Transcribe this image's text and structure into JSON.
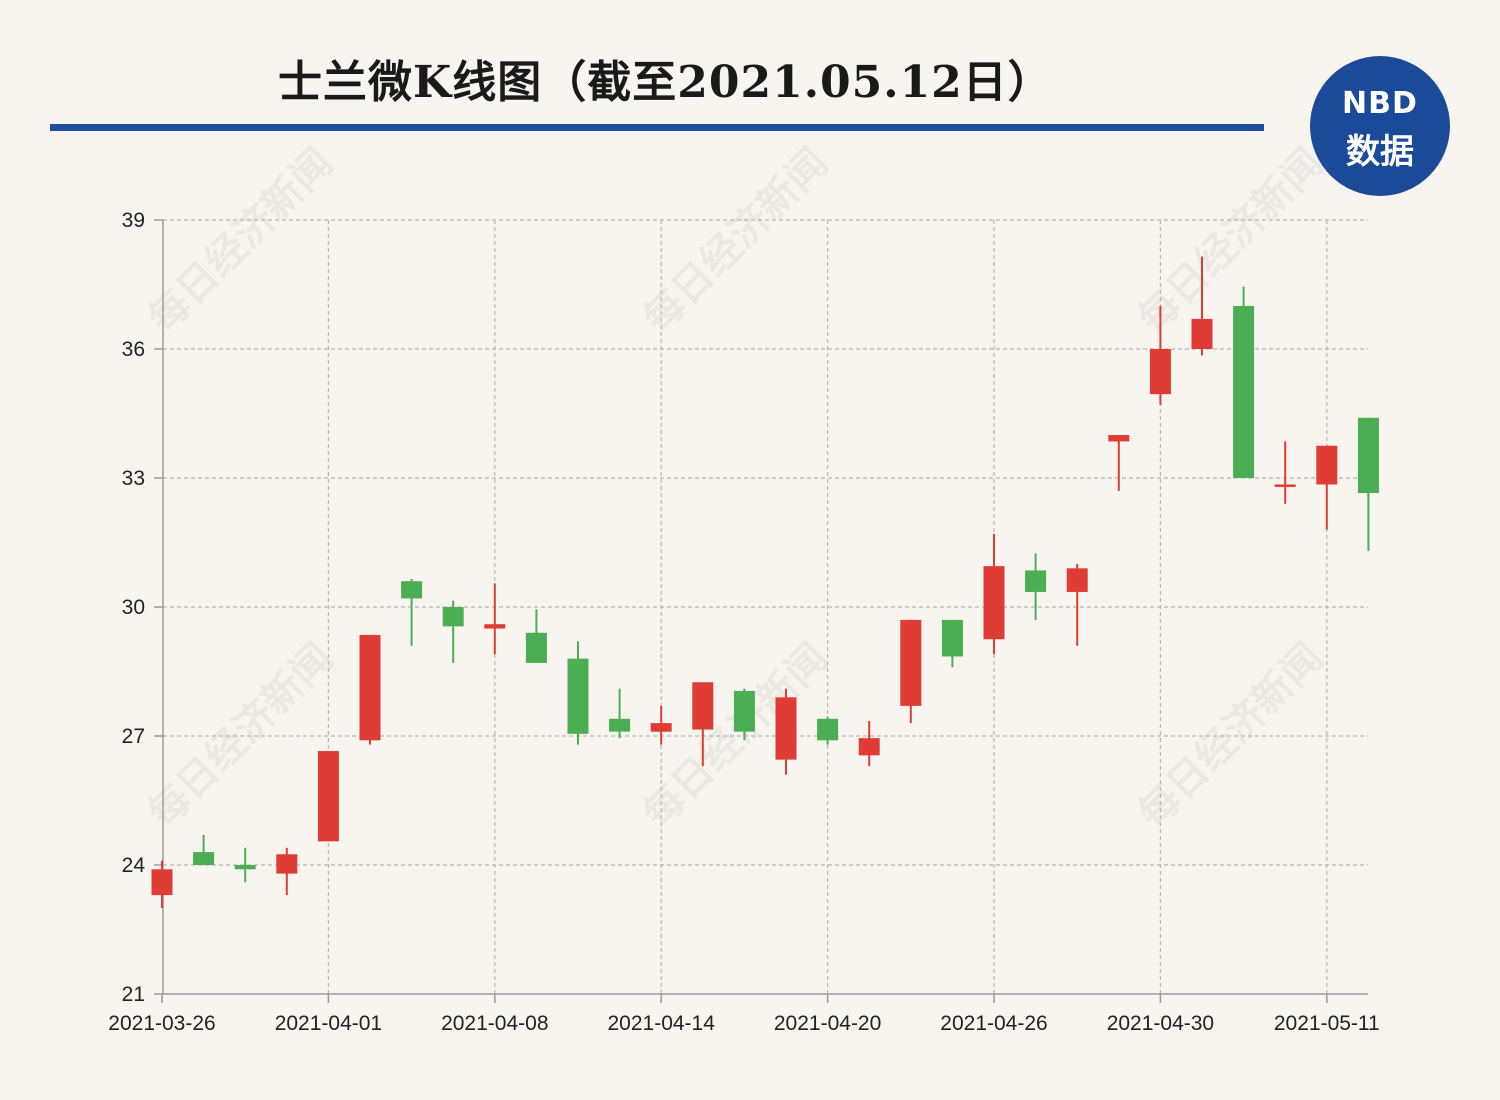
{
  "header": {
    "title": "士兰微K线图（截至2021.05.12日）",
    "logo_line1": "NBD",
    "logo_line2": "数据",
    "watermark": "每日经济新闻"
  },
  "colors": {
    "up": "#e03c36",
    "down": "#4cae52",
    "rule": "#1e4f9c",
    "logo_bg": "#1a4a98"
  },
  "chart_data": {
    "type": "candlestick",
    "ylim": [
      21,
      39
    ],
    "yticks": [
      21,
      24,
      27,
      30,
      33,
      36,
      39
    ],
    "xticks": [
      {
        "index": 0,
        "label": "2021-03-26"
      },
      {
        "index": 4,
        "label": "2021-04-01"
      },
      {
        "index": 8,
        "label": "2021-04-08"
      },
      {
        "index": 12,
        "label": "2021-04-14"
      },
      {
        "index": 16,
        "label": "2021-04-20"
      },
      {
        "index": 20,
        "label": "2021-04-26"
      },
      {
        "index": 24,
        "label": "2021-04-30"
      },
      {
        "index": 28,
        "label": "2021-05-11"
      }
    ],
    "grid": true,
    "candles": [
      {
        "open": 23.3,
        "close": 23.9,
        "high": 24.1,
        "low": 23.0
      },
      {
        "open": 24.3,
        "close": 24.0,
        "high": 24.7,
        "low": 24.0
      },
      {
        "open": 24.0,
        "close": 23.9,
        "high": 24.4,
        "low": 23.6
      },
      {
        "open": 23.8,
        "close": 24.25,
        "high": 24.4,
        "low": 23.3
      },
      {
        "open": 24.55,
        "close": 26.65,
        "high": 26.65,
        "low": 24.55
      },
      {
        "open": 26.9,
        "close": 29.35,
        "high": 29.35,
        "low": 26.8
      },
      {
        "open": 30.6,
        "close": 30.2,
        "high": 30.65,
        "low": 29.1
      },
      {
        "open": 30.0,
        "close": 29.55,
        "high": 30.15,
        "low": 28.7
      },
      {
        "open": 29.5,
        "close": 29.6,
        "high": 30.55,
        "low": 28.9
      },
      {
        "open": 29.4,
        "close": 28.7,
        "high": 29.95,
        "low": 28.7
      },
      {
        "open": 28.8,
        "close": 27.05,
        "high": 29.2,
        "low": 26.8
      },
      {
        "open": 27.4,
        "close": 27.1,
        "high": 28.1,
        "low": 26.95
      },
      {
        "open": 27.1,
        "close": 27.3,
        "high": 27.7,
        "low": 26.8
      },
      {
        "open": 27.15,
        "close": 28.25,
        "high": 28.25,
        "low": 26.3
      },
      {
        "open": 28.05,
        "close": 27.1,
        "high": 28.1,
        "low": 26.9
      },
      {
        "open": 26.45,
        "close": 27.9,
        "high": 28.1,
        "low": 26.1
      },
      {
        "open": 27.4,
        "close": 26.9,
        "high": 27.45,
        "low": 26.8
      },
      {
        "open": 26.55,
        "close": 26.95,
        "high": 27.35,
        "low": 26.3
      },
      {
        "open": 27.7,
        "close": 29.7,
        "high": 29.7,
        "low": 27.3
      },
      {
        "open": 29.7,
        "close": 28.85,
        "high": 29.7,
        "low": 28.6
      },
      {
        "open": 29.25,
        "close": 30.95,
        "high": 31.7,
        "low": 28.9
      },
      {
        "open": 30.85,
        "close": 30.35,
        "high": 31.25,
        "low": 29.7
      },
      {
        "open": 30.35,
        "close": 30.9,
        "high": 31.0,
        "low": 29.1
      },
      {
        "open": 33.85,
        "close": 34.0,
        "high": 34.0,
        "low": 32.7
      },
      {
        "open": 34.95,
        "close": 36.0,
        "high": 37.0,
        "low": 34.7
      },
      {
        "open": 36.0,
        "close": 36.7,
        "high": 38.15,
        "low": 35.85
      },
      {
        "open": 37.0,
        "close": 33.0,
        "high": 37.45,
        "low": 33.0
      },
      {
        "open": 32.85,
        "close": 32.85,
        "high": 33.85,
        "low": 32.4
      },
      {
        "open": 32.85,
        "close": 33.75,
        "high": 33.75,
        "low": 31.8
      },
      {
        "open": 34.4,
        "close": 32.65,
        "high": 34.4,
        "low": 31.3
      }
    ]
  }
}
